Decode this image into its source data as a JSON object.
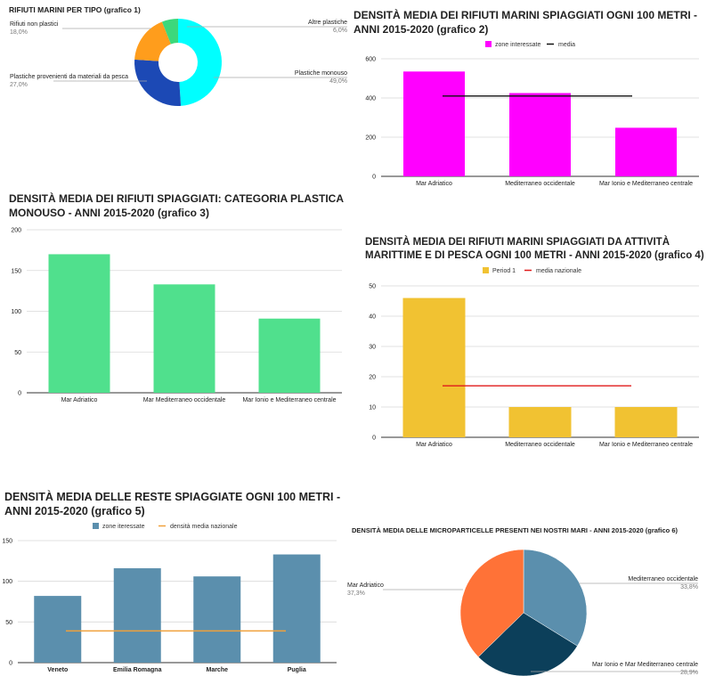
{
  "chart_data": [
    {
      "id": "c1",
      "type": "pie",
      "donut": true,
      "title": "RIFIUTI MARINI PER TIPO (grafico 1)",
      "slices": [
        {
          "label": "Plastiche monouso",
          "value": 49.0,
          "pct": "49,0%",
          "color": "#00ffff"
        },
        {
          "label": "Plastiche provenienti da materiali da pesca",
          "value": 27.0,
          "pct": "27,0%",
          "color": "#1c49b5"
        },
        {
          "label": "Rifiuti non plastici",
          "value": 18.0,
          "pct": "18,0%",
          "color": "#ff9d1c"
        },
        {
          "label": "Altre plastiche",
          "value": 6.0,
          "pct": "6,0%",
          "color": "#3cd87b"
        }
      ]
    },
    {
      "id": "c2",
      "type": "bar",
      "title": "DENSITÀ MEDIA DEI RIFIUTI MARINI SPIAGGIATI OGNI 100 METRI - ANNI 2015-2020 (grafico 2)",
      "categories": [
        "Mar Adriatico",
        "Mediterraneo occidentale",
        "Mar Ionio e Mediterraneo centrale"
      ],
      "series": [
        {
          "name": "zone interessate",
          "values": [
            535,
            425,
            248
          ],
          "color": "#ff00ff"
        }
      ],
      "line": {
        "name": "media",
        "value": 410,
        "color": "#111111"
      },
      "ylim": [
        0,
        600
      ],
      "yticks": [
        0,
        200,
        400,
        600
      ],
      "legend": "top"
    },
    {
      "id": "c3",
      "type": "bar",
      "title": "DENSITÀ MEDIA DEI RIFIUTI SPIAGGIATI: CATEGORIA PLASTICA MONOUSO - ANNI 2015-2020 (grafico 3)",
      "categories": [
        "Mar Adriatico",
        "Mar Mediterraneo occidentale",
        "Mar Ionio e Mediterraneo centrale"
      ],
      "series": [
        {
          "values": [
            170,
            133,
            91
          ],
          "color": "#50e08d"
        }
      ],
      "ylim": [
        0,
        200
      ],
      "yticks": [
        0,
        50,
        100,
        150,
        200
      ]
    },
    {
      "id": "c4",
      "type": "bar",
      "title": "DENSITÀ MEDIA DEI RIFIUTI MARINI SPIAGGIATI DA ATTIVITÀ MARITTIME E DI PESCA OGNI 100 METRI - ANNI 2015-2020 (grafico 4)",
      "categories": [
        "Mar Adriatico",
        "Mediterraneo occidentale",
        "Mar Ionio e Mediterraneo centrale"
      ],
      "series": [
        {
          "name": "Period 1",
          "values": [
            46,
            10,
            10
          ],
          "color": "#f1c232"
        }
      ],
      "line": {
        "name": "media nazionale",
        "value": 17,
        "color": "#e01b1b"
      },
      "ylim": [
        0,
        50
      ],
      "yticks": [
        0,
        10,
        20,
        30,
        40,
        50
      ],
      "legend": "top"
    },
    {
      "id": "c5",
      "type": "bar",
      "title": "DENSITÀ MEDIA DELLE RESTE SPIAGGIATE OGNI 100 METRI - ANNI 2015-2020 (grafico 5)",
      "categories": [
        "Veneto",
        "Emilia Romagna",
        "Marche",
        "Puglia"
      ],
      "series": [
        {
          "name": "zone iteressate",
          "values": [
            82,
            116,
            106,
            133
          ],
          "color": "#5b8fad"
        }
      ],
      "line": {
        "name": "densità media nazionale",
        "value": 39,
        "color": "#f0a13c"
      },
      "ylim": [
        0,
        150
      ],
      "yticks": [
        0,
        50,
        100,
        150
      ],
      "legend": "top"
    },
    {
      "id": "c6",
      "type": "pie",
      "title": "DENSITÀ MEDIA DELLE MICROPARTICELLE PRESENTI NEI NOSTRI MARI - ANNI 2015-2020 (grafico 6)",
      "slices": [
        {
          "label": "Mediterraneo occidentale",
          "value": 33.8,
          "pct": "33,8%",
          "color": "#5b8fad"
        },
        {
          "label": "Mar Ionio e Mar Mediterraneo centrale",
          "value": 28.9,
          "pct": "28,9%",
          "color": "#0c3f5a"
        },
        {
          "label": "Mar Adriatico",
          "value": 37.3,
          "pct": "37,3%",
          "color": "#ff7237"
        }
      ]
    }
  ]
}
